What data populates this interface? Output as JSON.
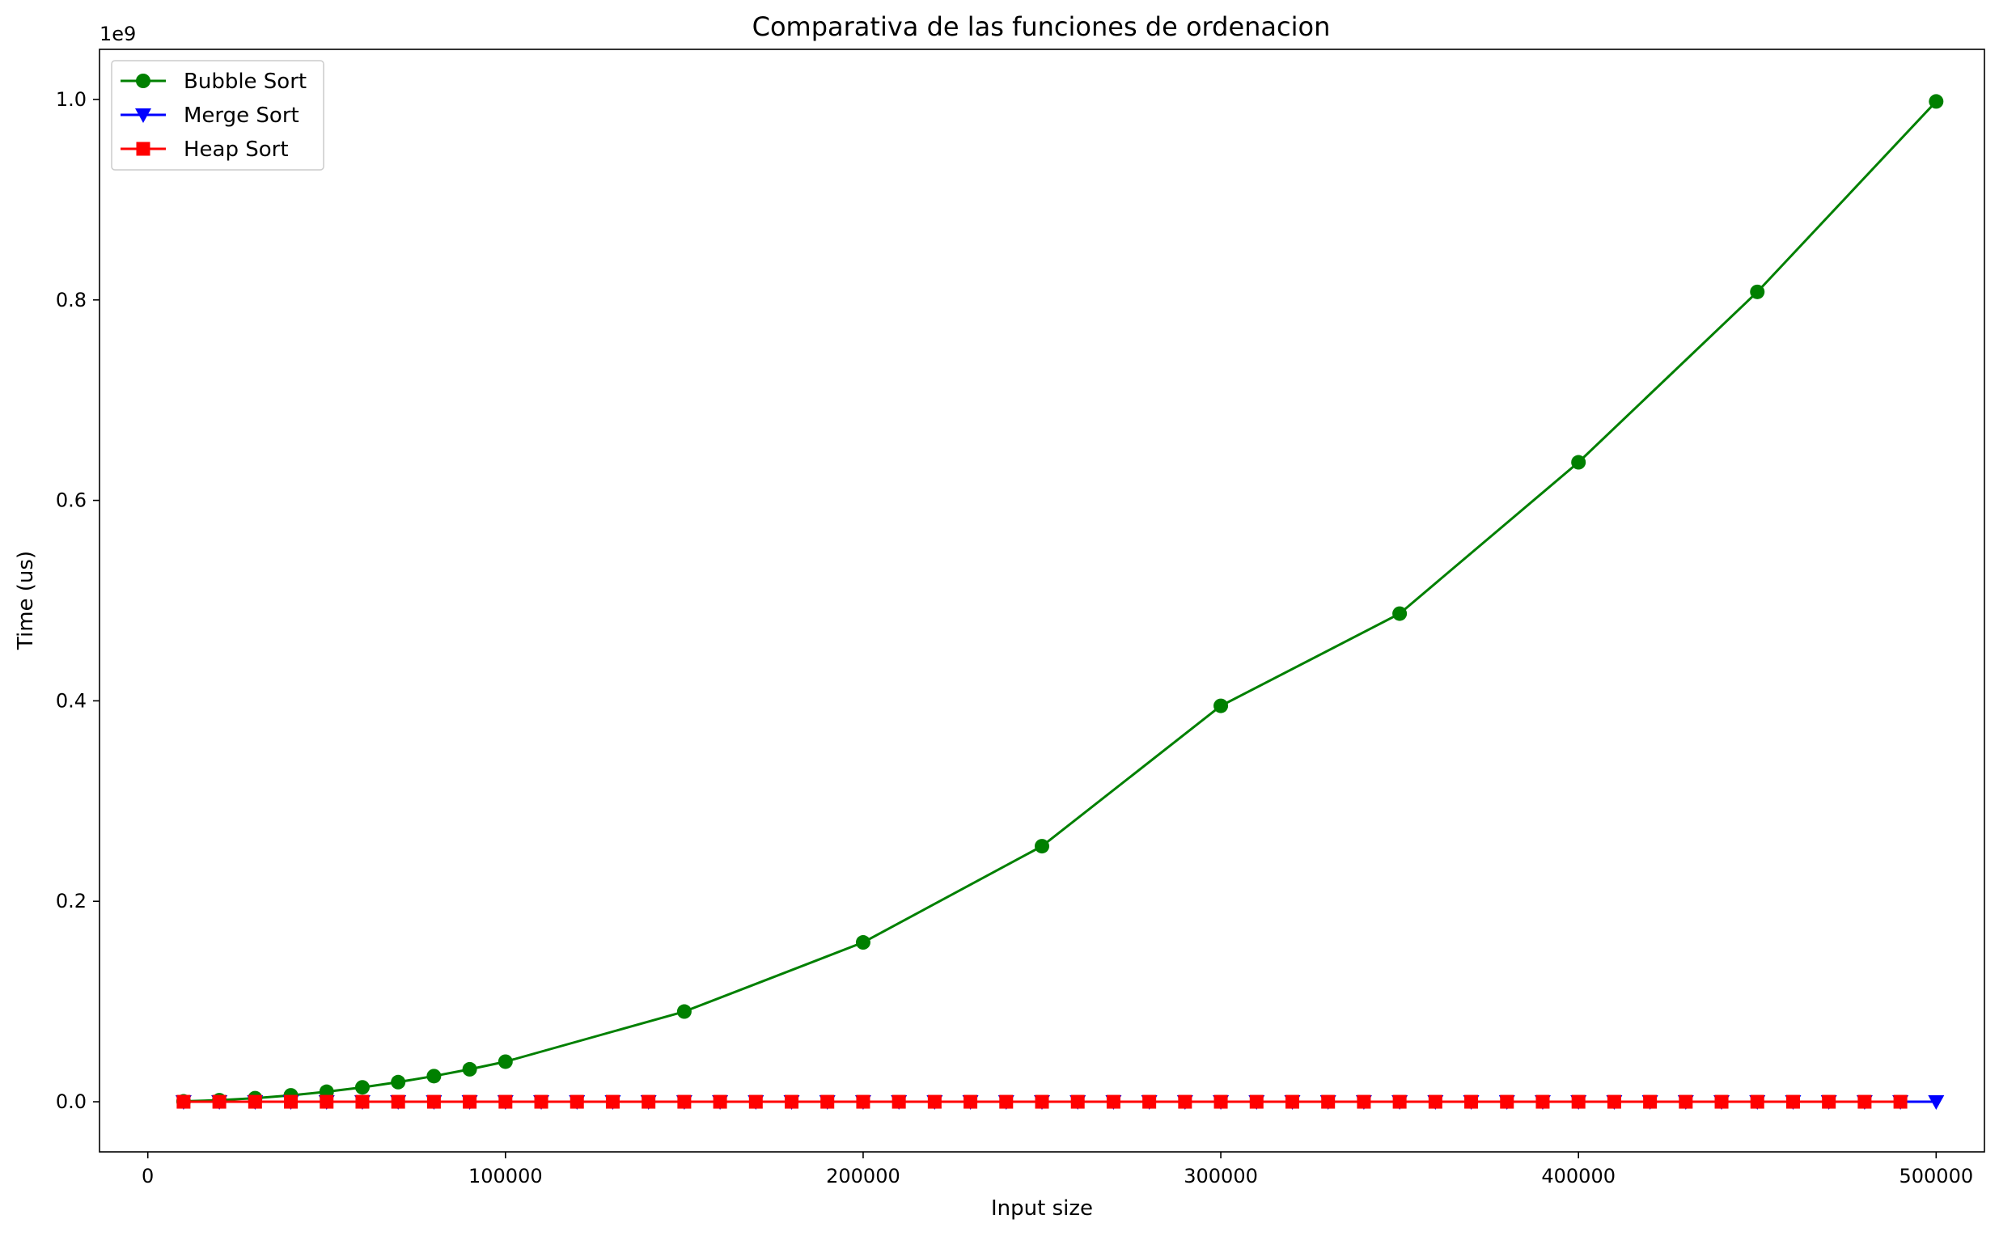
{
  "chart_data": {
    "type": "line",
    "title": "Comparativa de las funciones de ordenacion",
    "xlabel": "Input size",
    "ylabel": "Time (us)",
    "y_offset_text": "1e9",
    "xlim": [
      -13500,
      513500
    ],
    "ylim": [
      -0.05,
      1.05
    ],
    "y_scale_factor": 1000000000,
    "xticks": [
      0,
      100000,
      200000,
      300000,
      400000,
      500000
    ],
    "xtick_labels": [
      "0",
      "100000",
      "200000",
      "300000",
      "400000",
      "500000"
    ],
    "yticks": [
      0.0,
      0.2,
      0.4,
      0.6,
      0.8,
      1.0
    ],
    "ytick_labels": [
      "0.0",
      "0.2",
      "0.4",
      "0.6",
      "0.8",
      "1.0"
    ],
    "grid": false,
    "legend_position": "top-left",
    "series": [
      {
        "name": "Bubble Sort",
        "color": "#008000",
        "marker": "circle",
        "x": [
          10000,
          20000,
          30000,
          40000,
          50000,
          60000,
          70000,
          80000,
          90000,
          100000,
          150000,
          200000,
          250000,
          300000,
          350000,
          400000,
          450000,
          500000
        ],
        "y": [
          0.0004,
          0.0016,
          0.0036,
          0.0064,
          0.01,
          0.0144,
          0.0196,
          0.0256,
          0.0324,
          0.04,
          0.09,
          0.159,
          0.255,
          0.395,
          0.487,
          0.638,
          0.808,
          0.998
        ]
      },
      {
        "name": "Merge Sort",
        "color": "#0000ff",
        "marker": "triangle-down",
        "x": [
          10000,
          20000,
          30000,
          40000,
          50000,
          60000,
          70000,
          80000,
          90000,
          100000,
          110000,
          120000,
          130000,
          140000,
          150000,
          160000,
          170000,
          180000,
          190000,
          200000,
          210000,
          220000,
          230000,
          240000,
          250000,
          260000,
          270000,
          280000,
          290000,
          300000,
          310000,
          320000,
          330000,
          340000,
          350000,
          360000,
          370000,
          380000,
          390000,
          400000,
          410000,
          420000,
          430000,
          440000,
          450000,
          460000,
          470000,
          480000,
          490000,
          500000
        ],
        "y": [
          0,
          0,
          0,
          0,
          0,
          0,
          0,
          0,
          0,
          0,
          0,
          0,
          0,
          0,
          0,
          0,
          0,
          0,
          0,
          0,
          0,
          0,
          0,
          0,
          0,
          0,
          0,
          0,
          0,
          0,
          0,
          0,
          0,
          0,
          0,
          0,
          0,
          0,
          0,
          0,
          0,
          0,
          0,
          0,
          0,
          0,
          0,
          0,
          0,
          0
        ]
      },
      {
        "name": "Heap Sort",
        "color": "#ff0000",
        "marker": "square",
        "x": [
          10000,
          20000,
          30000,
          40000,
          50000,
          60000,
          70000,
          80000,
          90000,
          100000,
          110000,
          120000,
          130000,
          140000,
          150000,
          160000,
          170000,
          180000,
          190000,
          200000,
          210000,
          220000,
          230000,
          240000,
          250000,
          260000,
          270000,
          280000,
          290000,
          300000,
          310000,
          320000,
          330000,
          340000,
          350000,
          360000,
          370000,
          380000,
          390000,
          400000,
          410000,
          420000,
          430000,
          440000,
          450000,
          460000,
          470000,
          480000,
          490000
        ],
        "y": [
          0,
          0,
          0,
          0,
          0,
          0,
          0,
          0,
          0,
          0,
          0,
          0,
          0,
          0,
          0,
          0,
          0,
          0,
          0,
          0,
          0,
          0,
          0,
          0,
          0,
          0,
          0,
          0,
          0,
          0,
          0,
          0,
          0,
          0,
          0,
          0,
          0,
          0,
          0,
          0,
          0,
          0,
          0,
          0,
          0,
          0,
          0,
          0,
          0
        ]
      }
    ]
  }
}
